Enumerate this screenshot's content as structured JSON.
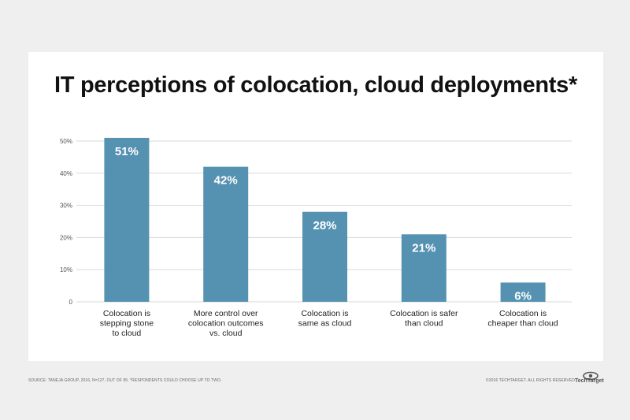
{
  "header": {
    "title": "IT perceptions of colocation, cloud deployments*"
  },
  "footer": {
    "source": "SOURCE: TANEJA GROUP, 2016, N=127, OUT OF 95. *RESPONDENTS COULD CHOOSE UP TO TWO.",
    "copyright": "©2016 TECHTARGET. ALL RIGHTS RESERVED",
    "logo_text": "TechTarget",
    "logo_icon": "eye-icon"
  },
  "colors": {
    "bar": "#5592b1",
    "grid": "#d8d8d8",
    "label": "#ffffff"
  },
  "chart_data": {
    "type": "bar",
    "title": "IT perceptions of colocation, cloud deployments*",
    "xlabel": "",
    "ylabel": "",
    "ylim": [
      0,
      50
    ],
    "yticks": [
      {
        "value": 0,
        "label": "0"
      },
      {
        "value": 10,
        "label": "10%"
      },
      {
        "value": 20,
        "label": "20%"
      },
      {
        "value": 30,
        "label": "30%"
      },
      {
        "value": 40,
        "label": "40%"
      },
      {
        "value": 50,
        "label": "50%"
      }
    ],
    "grid": true,
    "categories": [
      [
        "Colocation is",
        "stepping stone",
        "to cloud"
      ],
      [
        "More control over",
        "colocation outcomes",
        "vs. cloud"
      ],
      [
        "Colocation is",
        "same as cloud"
      ],
      [
        "Colocation is safer",
        "than cloud"
      ],
      [
        "Colocation is",
        "cheaper than cloud"
      ]
    ],
    "values": [
      51,
      42,
      28,
      21,
      6
    ],
    "value_labels": [
      "51%",
      "42%",
      "28%",
      "21%",
      "6%"
    ]
  }
}
